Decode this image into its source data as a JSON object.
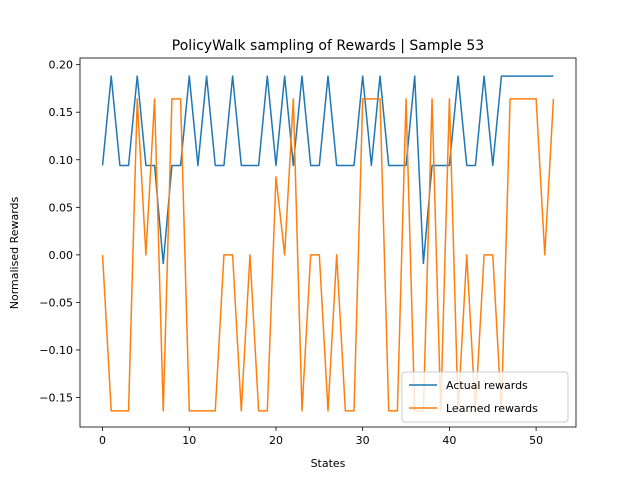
{
  "chart_data": {
    "type": "line",
    "title": "PolicyWalk sampling of Rewards | Sample 53",
    "xlabel": "States",
    "ylabel": "Normalised Rewards",
    "xlim": [
      -2.6,
      54.6
    ],
    "ylim": [
      -0.181,
      0.207
    ],
    "xticks": [
      0,
      10,
      20,
      30,
      40,
      50
    ],
    "xtick_labels": [
      "0",
      "10",
      "20",
      "30",
      "40",
      "50"
    ],
    "yticks": [
      -0.15,
      -0.1,
      -0.05,
      0.0,
      0.05,
      0.1,
      0.15,
      0.2
    ],
    "ytick_labels": [
      "−0.15",
      "−0.10",
      "−0.05",
      "0.00",
      "0.05",
      "0.10",
      "0.15",
      "0.20"
    ],
    "grid": false,
    "legend_position": "lower-right",
    "x": [
      0,
      1,
      2,
      3,
      4,
      5,
      6,
      7,
      8,
      9,
      10,
      11,
      12,
      13,
      14,
      15,
      16,
      17,
      18,
      19,
      20,
      21,
      22,
      23,
      24,
      25,
      26,
      27,
      28,
      29,
      30,
      31,
      32,
      33,
      34,
      35,
      36,
      37,
      38,
      39,
      40,
      41,
      42,
      43,
      44,
      45,
      46,
      47,
      48,
      49,
      50,
      51,
      52
    ],
    "series": [
      {
        "name": "Actual rewards",
        "color": "#1f77b4",
        "values": [
          0.094,
          0.188,
          0.094,
          0.094,
          0.188,
          0.094,
          0.094,
          -0.009,
          0.094,
          0.094,
          0.188,
          0.094,
          0.188,
          0.094,
          0.094,
          0.188,
          0.094,
          0.094,
          0.094,
          0.188,
          0.094,
          0.188,
          0.094,
          0.188,
          0.094,
          0.094,
          0.188,
          0.094,
          0.094,
          0.094,
          0.188,
          0.094,
          0.188,
          0.094,
          0.094,
          0.094,
          0.188,
          -0.009,
          0.094,
          0.094,
          0.094,
          0.188,
          0.094,
          0.094,
          0.188,
          0.094,
          0.188,
          0.188,
          0.188,
          0.188,
          0.188,
          0.188,
          0.188
        ]
      },
      {
        "name": "Learned rewards",
        "color": "#ff7f0e",
        "values": [
          0.0,
          -0.164,
          -0.164,
          -0.164,
          0.164,
          0.0,
          0.164,
          -0.164,
          0.164,
          0.164,
          -0.164,
          -0.164,
          -0.164,
          -0.164,
          0.0,
          0.0,
          -0.164,
          0.0,
          -0.164,
          -0.164,
          0.082,
          0.0,
          0.164,
          -0.164,
          0.0,
          0.0,
          -0.164,
          0.0,
          -0.164,
          -0.164,
          0.164,
          0.164,
          0.164,
          -0.164,
          -0.164,
          0.164,
          -0.164,
          -0.164,
          0.164,
          -0.164,
          0.164,
          -0.164,
          0.0,
          -0.164,
          0.0,
          0.0,
          -0.164,
          0.164,
          0.164,
          0.164,
          0.164,
          0.0,
          0.164
        ]
      }
    ]
  }
}
